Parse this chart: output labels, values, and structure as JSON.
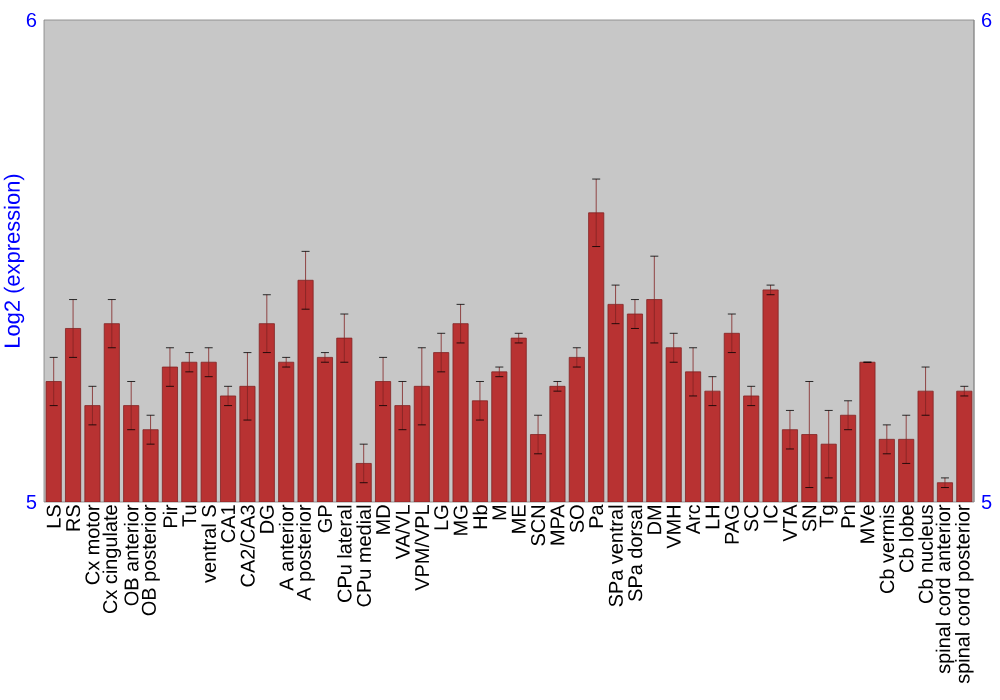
{
  "chart_data": {
    "type": "bar",
    "ylabel": "Log2 (expression)",
    "categories": [
      "LS",
      "RS",
      "Cx motor",
      "Cx cingulate",
      "OB anterior",
      "OB posterior",
      "Pir",
      "Tu",
      "ventral S",
      "CA1",
      "CA2/CA3",
      "DG",
      "A anterior",
      "A posterior",
      "GP",
      "CPu lateral",
      "CPu medial",
      "MD",
      "VA/VL",
      "VPM/VPL",
      "LG",
      "MG",
      "Hb",
      "M",
      "ME",
      "SCN",
      "MPA",
      "SO",
      "Pa",
      "SPa ventral",
      "SPa dorsal",
      "DM",
      "VMH",
      "Arc",
      "LH",
      "PAG",
      "SC",
      "IC",
      "VTA",
      "SN",
      "Tg",
      "Pn",
      "MVe",
      "Cb vermis",
      "Cb lobe",
      "Cb nucleus",
      "spinal cord anterior",
      "spinal cord posterior"
    ],
    "values": [
      5.25,
      5.36,
      5.2,
      5.37,
      5.2,
      5.15,
      5.28,
      5.29,
      5.29,
      5.22,
      5.24,
      5.37,
      5.29,
      5.46,
      5.3,
      5.34,
      5.08,
      5.25,
      5.2,
      5.24,
      5.31,
      5.37,
      5.21,
      5.27,
      5.34,
      5.14,
      5.24,
      5.3,
      5.6,
      5.41,
      5.39,
      5.42,
      5.32,
      5.27,
      5.23,
      5.35,
      5.22,
      5.44,
      5.15,
      5.14,
      5.12,
      5.18,
      5.29,
      5.13,
      5.13,
      5.23,
      5.04,
      5.23
    ],
    "errors": [
      0.05,
      0.06,
      0.04,
      0.05,
      0.05,
      0.03,
      0.04,
      0.02,
      0.03,
      0.02,
      0.07,
      0.06,
      0.01,
      0.06,
      0.01,
      0.05,
      0.04,
      0.05,
      0.05,
      0.08,
      0.04,
      0.04,
      0.04,
      0.01,
      0.01,
      0.04,
      0.01,
      0.02,
      0.07,
      0.04,
      0.03,
      0.09,
      0.03,
      0.05,
      0.03,
      0.04,
      0.02,
      0.01,
      0.04,
      0.11,
      0.07,
      0.03,
      null,
      0.03,
      0.05,
      0.05,
      0.01,
      0.01
    ],
    "color": "#b83232",
    "ylim": [
      5,
      6
    ],
    "yticks": [
      5,
      6
    ],
    "y2lim": [
      5,
      6
    ],
    "y2ticks": [
      5,
      6
    ]
  }
}
